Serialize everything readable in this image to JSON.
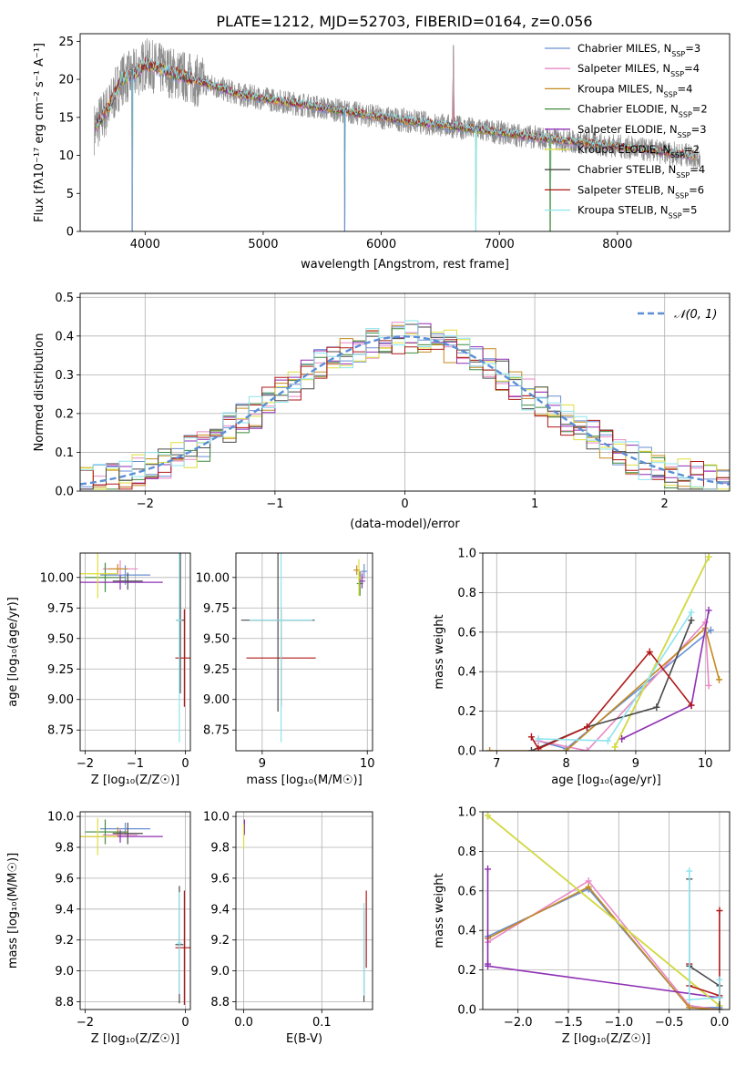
{
  "title": "PLATE=1212, MJD=52703, FIBERID=0164, z=0.056",
  "colors": [
    "#6a8fd4",
    "#e889c6",
    "#c48a1e",
    "#3f8a3f",
    "#8e2fb4",
    "#dede3a",
    "#4a4a4a",
    "#b01818",
    "#8ee4ee"
  ],
  "chart_data": [
    {
      "id": "spectrum",
      "type": "line",
      "xlabel": "wavelength [Angstrom, rest frame]",
      "ylabel": "Flux [f_λ 10^-17 erg cm^-2 s^-1 A^-1]",
      "xlim": [
        3450,
        8950
      ],
      "ylim": [
        0,
        26
      ],
      "xticks": [
        4000,
        5000,
        6000,
        7000,
        8000
      ],
      "yticks": [
        0,
        5,
        10,
        15,
        20,
        25
      ],
      "grid": false,
      "legend_position": "top-right",
      "observed_color": "#8c8c8c",
      "continuum": {
        "x": [
          3570,
          3700,
          3800,
          3900,
          4000,
          4200,
          4500,
          4800,
          5200,
          5600,
          6000,
          6500,
          7000,
          7500,
          8000,
          8500,
          8700
        ],
        "y": [
          13.5,
          16.5,
          20.0,
          20.5,
          22.0,
          21.0,
          19.5,
          18.0,
          17.0,
          16.0,
          15.0,
          14.0,
          13.0,
          12.0,
          11.2,
          10.2,
          9.8
        ]
      },
      "features": [
        {
          "x": 3890,
          "y": 0
        },
        {
          "x": 5690,
          "y": 0
        },
        {
          "x": 6800,
          "y": 0
        },
        {
          "x": 7430,
          "y": 0
        },
        {
          "x": 6610,
          "y": 24.5
        }
      ],
      "series": [
        {
          "name": "Chabrier MILES, N_SSP=3"
        },
        {
          "name": "Salpeter MILES, N_SSP=4"
        },
        {
          "name": "Kroupa MILES, N_SSP=4"
        },
        {
          "name": "Chabrier ELODIE, N_SSP=2"
        },
        {
          "name": "Salpeter ELODIE, N_SSP=3"
        },
        {
          "name": "Kroupa ELODIE, N_SSP=2"
        },
        {
          "name": "Chabrier STELIB, N_SSP=4"
        },
        {
          "name": "Salpeter STELIB, N_SSP=6"
        },
        {
          "name": "Kroupa STELIB, N_SSP=5"
        }
      ]
    },
    {
      "id": "residuals",
      "type": "histogram",
      "xlabel": "(data-model)/error",
      "ylabel": "Normed distribution",
      "xlim": [
        -2.5,
        2.5
      ],
      "ylim": [
        0,
        0.51
      ],
      "xticks": [
        -2,
        -1,
        0,
        1,
        2
      ],
      "yticks": [
        0.0,
        0.1,
        0.2,
        0.3,
        0.4,
        0.5
      ],
      "grid": true,
      "legend_position": "top-right",
      "reference_curve": {
        "name": "N(0,1)",
        "mean": 0,
        "sigma": 1,
        "color": "#5b8fd6"
      },
      "bin_edges_start": -2.5,
      "bin_width": 0.1,
      "bins": 50
    },
    {
      "id": "age_vs_Z",
      "type": "scatter",
      "xlabel": "Z [log10(Z/Z☉)]",
      "ylabel": "age [log10(age/yr)]",
      "xlim": [
        -2.1,
        0.1
      ],
      "ylim": [
        8.58,
        10.2
      ],
      "xticks": [
        -2,
        -1,
        0
      ],
      "yticks": [
        8.75,
        9.0,
        9.25,
        9.5,
        9.75,
        10.0
      ],
      "grid": true,
      "points": [
        {
          "x": -1.2,
          "y": 10.02,
          "xerr": 0.5,
          "yerr": 0.08,
          "c": 0
        },
        {
          "x": -1.3,
          "y": 10.07,
          "xerr": 0.35,
          "yerr": 0.07,
          "c": 1
        },
        {
          "x": -1.35,
          "y": 10.07,
          "xerr": 0.2,
          "yerr": 0.04,
          "c": 2
        },
        {
          "x": -1.6,
          "y": 10.0,
          "xerr": 0.4,
          "yerr": 0.12,
          "c": 3
        },
        {
          "x": -1.3,
          "y": 9.96,
          "xerr": 0.85,
          "yerr": 0.06,
          "c": 4
        },
        {
          "x": -1.75,
          "y": 10.03,
          "xerr": 0.4,
          "yerr": 0.2,
          "c": 5
        },
        {
          "x": -1.15,
          "y": 9.97,
          "xerr": 0.3,
          "yerr": 0.07,
          "c": 6
        },
        {
          "x": -0.1,
          "y": 9.65,
          "xerr": 0.08,
          "yerr": 0.6,
          "c": 6
        },
        {
          "x": -0.02,
          "y": 9.34,
          "xerr": 0.18,
          "yerr": 0.4,
          "c": 7
        },
        {
          "x": -0.12,
          "y": 9.65,
          "xerr": 0.05,
          "yerr": 1.0,
          "c": 8
        }
      ]
    },
    {
      "id": "age_vs_mass",
      "type": "scatter",
      "xlabel": "mass [log10(M/M☉)]",
      "ylabel": "",
      "xlim": [
        8.75,
        10.05
      ],
      "ylim": [
        8.58,
        10.2
      ],
      "xticks": [
        9,
        10
      ],
      "yticks": [
        8.75,
        9.0,
        9.25,
        9.5,
        9.75,
        10.0
      ],
      "grid": true,
      "points": [
        {
          "x": 9.97,
          "y": 10.05,
          "xerr": 0.03,
          "yerr": 0.06,
          "c": 0
        },
        {
          "x": 9.95,
          "y": 10.0,
          "xerr": 0.03,
          "yerr": 0.05,
          "c": 1
        },
        {
          "x": 9.9,
          "y": 10.06,
          "xerr": 0.03,
          "yerr": 0.04,
          "c": 2
        },
        {
          "x": 9.93,
          "y": 9.95,
          "xerr": 0.03,
          "yerr": 0.1,
          "c": 3
        },
        {
          "x": 9.95,
          "y": 9.97,
          "xerr": 0.03,
          "yerr": 0.06,
          "c": 4
        },
        {
          "x": 9.92,
          "y": 10.0,
          "xerr": 0.02,
          "yerr": 0.15,
          "c": 5
        },
        {
          "x": 9.15,
          "y": 9.65,
          "xerr": 0.35,
          "yerr": 0.75,
          "c": 6
        },
        {
          "x": 9.18,
          "y": 9.34,
          "xerr": 0.33,
          "yerr": 0.4,
          "c": 7
        },
        {
          "x": 9.18,
          "y": 9.65,
          "xerr": 0.3,
          "yerr": 1.0,
          "c": 8
        }
      ]
    },
    {
      "id": "weight_vs_age",
      "type": "line",
      "xlabel": "age [log10(age/yr)]",
      "ylabel": "mass weight",
      "xlim": [
        6.8,
        10.35
      ],
      "ylim": [
        0,
        1
      ],
      "xticks": [
        7,
        8,
        9,
        10
      ],
      "yticks": [
        0.0,
        0.2,
        0.4,
        0.6,
        0.8,
        1.0
      ],
      "grid": true,
      "series": [
        {
          "c": 0,
          "x": [
            7.6,
            8.0,
            10.08
          ],
          "y": [
            0.05,
            0.01,
            0.61
          ]
        },
        {
          "c": 1,
          "x": [
            7.6,
            8.3,
            10.0,
            10.05
          ],
          "y": [
            0.05,
            0.0,
            0.65,
            0.33
          ]
        },
        {
          "c": 2,
          "x": [
            6.9,
            8.0,
            10.0,
            10.2
          ],
          "y": [
            0.0,
            0.0,
            0.62,
            0.36
          ]
        },
        {
          "c": 3,
          "x": [
            8.7,
            10.05
          ],
          "y": [
            0.02,
            0.98
          ]
        },
        {
          "c": 4,
          "x": [
            8.8,
            9.8,
            10.05
          ],
          "y": [
            0.06,
            0.23,
            0.71
          ]
        },
        {
          "c": 5,
          "x": [
            8.7,
            10.05
          ],
          "y": [
            0.02,
            0.98
          ]
        },
        {
          "c": 6,
          "x": [
            7.5,
            8.3,
            9.3,
            9.8
          ],
          "y": [
            0.0,
            0.12,
            0.22,
            0.66
          ]
        },
        {
          "c": 7,
          "x": [
            7.5,
            7.6,
            8.3,
            9.2,
            9.8
          ],
          "y": [
            0.07,
            0.01,
            0.12,
            0.5,
            0.23
          ]
        },
        {
          "c": 8,
          "x": [
            7.6,
            8.6,
            9.8
          ],
          "y": [
            0.06,
            0.05,
            0.7
          ]
        }
      ]
    },
    {
      "id": "mass_vs_Z",
      "type": "scatter",
      "xlabel": "Z [log10(Z/Z☉)]",
      "ylabel": "mass [log10(M/M☉)]",
      "xlim": [
        -2.1,
        0.1
      ],
      "ylim": [
        8.75,
        10.03
      ],
      "xticks": [
        -2,
        0
      ],
      "yticks": [
        8.8,
        9.0,
        9.2,
        9.4,
        9.6,
        9.8,
        10.0
      ],
      "grid": true,
      "points": [
        {
          "x": -1.2,
          "y": 9.92,
          "xerr": 0.5,
          "yerr": 0.04,
          "c": 0
        },
        {
          "x": -1.3,
          "y": 9.88,
          "xerr": 0.35,
          "yerr": 0.04,
          "c": 1
        },
        {
          "x": -1.35,
          "y": 9.9,
          "xerr": 0.2,
          "yerr": 0.03,
          "c": 2
        },
        {
          "x": -1.6,
          "y": 9.9,
          "xerr": 0.4,
          "yerr": 0.08,
          "c": 3
        },
        {
          "x": -1.3,
          "y": 9.87,
          "xerr": 0.85,
          "yerr": 0.04,
          "c": 4
        },
        {
          "x": -1.75,
          "y": 9.87,
          "xerr": 0.4,
          "yerr": 0.12,
          "c": 5
        },
        {
          "x": -1.15,
          "y": 9.89,
          "xerr": 0.3,
          "yerr": 0.07,
          "c": 6
        },
        {
          "x": -0.12,
          "y": 9.17,
          "xerr": 0.08,
          "yerr": 0.38,
          "c": 6
        },
        {
          "x": -0.02,
          "y": 9.15,
          "xerr": 0.18,
          "yerr": 0.37,
          "c": 7
        },
        {
          "x": -0.12,
          "y": 9.18,
          "xerr": 0.05,
          "yerr": 0.33,
          "c": 8
        }
      ]
    },
    {
      "id": "mass_vs_ebv",
      "type": "scatter",
      "xlabel": "E(B-V)",
      "ylabel": "",
      "xlim": [
        -0.01,
        0.165
      ],
      "ylim": [
        8.75,
        10.03
      ],
      "xticks": [
        0.0,
        0.1
      ],
      "yticks": [
        8.8,
        9.0,
        9.2,
        9.4,
        9.6,
        9.8,
        10.0
      ],
      "grid": true,
      "points": [
        {
          "x": 0.001,
          "y": 9.93,
          "xerr": 0,
          "yerr": 0.05,
          "c": 4
        },
        {
          "x": 0.0,
          "y": 9.87,
          "xerr": 0,
          "yerr": 0.08,
          "c": 5
        },
        {
          "x": 0.154,
          "y": 9.1,
          "xerr": 0,
          "yerr": 0.3,
          "c": 6
        },
        {
          "x": 0.157,
          "y": 9.27,
          "xerr": 0,
          "yerr": 0.25,
          "c": 7
        },
        {
          "x": 0.154,
          "y": 9.14,
          "xerr": 0,
          "yerr": 0.3,
          "c": 8
        }
      ]
    },
    {
      "id": "weight_vs_Z",
      "type": "line",
      "xlabel": "Z [log10(Z/Z☉)]",
      "ylabel": "mass weight",
      "xlim": [
        -2.35,
        0.1
      ],
      "ylim": [
        0,
        1
      ],
      "xticks": [
        -2.0,
        -1.5,
        -1.0,
        -0.5,
        0.0
      ],
      "yticks": [
        0.0,
        0.2,
        0.4,
        0.6,
        0.8,
        1.0
      ],
      "grid": true,
      "series": [
        {
          "c": 0,
          "x": [
            -2.3,
            -1.3,
            -0.3,
            0.0
          ],
          "y": [
            0.37,
            0.61,
            0.01,
            0.01
          ]
        },
        {
          "c": 1,
          "x": [
            -2.3,
            -1.3,
            -0.3,
            0.0
          ],
          "y": [
            0.34,
            0.65,
            0.02,
            0.0
          ]
        },
        {
          "c": 2,
          "x": [
            -2.3,
            -1.3,
            -0.3,
            0.0
          ],
          "y": [
            0.36,
            0.62,
            0.01,
            0.0
          ]
        },
        {
          "c": 3,
          "x": [
            -2.3,
            0.0
          ],
          "y": [
            0.98,
            0.02
          ]
        },
        {
          "c": 4,
          "x": [
            -2.3,
            -2.3,
            -2.3,
            0.0,
            0.0
          ],
          "y": [
            0.71,
            0.23,
            0.22,
            0.06,
            0.06
          ]
        },
        {
          "c": 5,
          "x": [
            -2.3,
            0.0
          ],
          "y": [
            0.98,
            0.02
          ]
        },
        {
          "c": 6,
          "x": [
            -0.3,
            -0.3,
            0.0,
            0.0
          ],
          "y": [
            0.66,
            0.22,
            0.12,
            0.0
          ]
        },
        {
          "c": 7,
          "x": [
            -0.3,
            -0.3,
            0.0,
            0.0
          ],
          "y": [
            0.23,
            0.12,
            0.07,
            0.5
          ]
        },
        {
          "c": 8,
          "x": [
            -0.3,
            -0.3,
            0.0,
            0.0
          ],
          "y": [
            0.7,
            0.05,
            0.06,
            0.15
          ]
        }
      ]
    }
  ]
}
